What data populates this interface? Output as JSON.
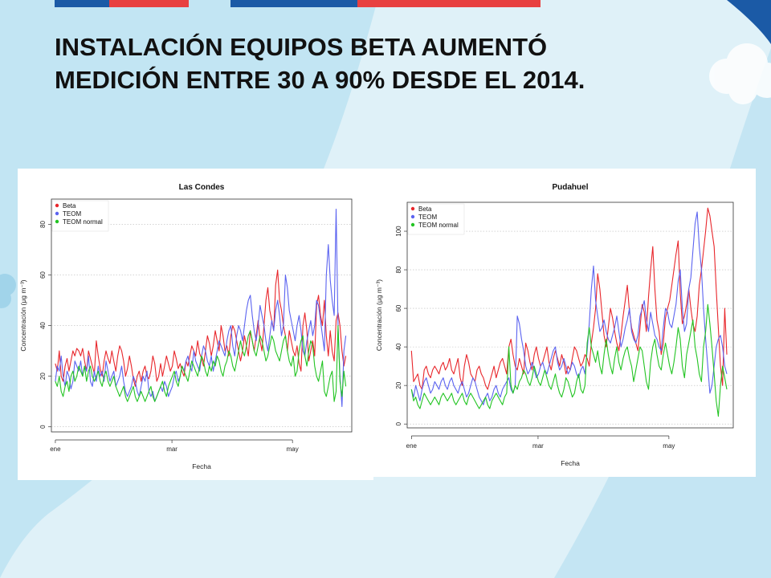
{
  "slide": {
    "title_line1": "INSTALACIÓN EQUIPOS BETA AUMENTÓ",
    "title_line2": "MEDICIÓN ENTRE 30 A 90% DESDE EL 2014.",
    "colors": {
      "background": "#dff1f8",
      "wave": "#bfe3f2",
      "bar_blue": "#1b5aa6",
      "bar_red": "#e84040"
    }
  },
  "chart_data": [
    {
      "type": "line",
      "title": "Las Condes",
      "xlabel": "Fecha",
      "ylabel": "Concentración (μg m⁻³)",
      "x_tick_labels": [
        "ene",
        "mar",
        "may"
      ],
      "x_ticks_day": [
        0,
        59,
        120
      ],
      "x_range_day": [
        -2,
        150
      ],
      "ylim": [
        -2,
        90
      ],
      "yticks": [
        0,
        20,
        40,
        60,
        80
      ],
      "grid": true,
      "legend_position": "top-left",
      "series": [
        {
          "name": "Beta",
          "color": "#e8262b",
          "values": [
            25,
            22,
            30,
            20,
            18,
            24,
            27,
            22,
            26,
            30,
            28,
            31,
            30,
            28,
            31,
            26,
            22,
            30,
            27,
            24,
            21,
            34,
            28,
            23,
            20,
            26,
            30,
            27,
            25,
            30,
            26,
            22,
            28,
            32,
            30,
            26,
            20,
            23,
            28,
            24,
            19,
            16,
            20,
            22,
            18,
            22,
            24,
            20,
            19,
            22,
            28,
            25,
            18,
            20,
            25,
            20,
            24,
            28,
            25,
            22,
            24,
            30,
            27,
            23,
            25,
            22,
            20,
            26,
            24,
            28,
            32,
            30,
            28,
            34,
            29,
            27,
            24,
            30,
            36,
            33,
            28,
            32,
            38,
            34,
            30,
            40,
            36,
            30,
            32,
            28,
            36,
            40,
            38,
            34,
            30,
            26,
            30,
            36,
            32,
            28,
            38,
            34,
            30,
            36,
            42,
            34,
            30,
            40,
            50,
            55,
            46,
            42,
            38,
            56,
            62,
            50,
            46,
            40,
            36,
            30,
            38,
            34,
            30,
            28,
            32,
            25,
            22,
            40,
            45,
            38,
            26,
            30,
            34,
            28,
            48,
            52,
            44,
            40,
            50,
            36,
            28,
            38,
            30,
            26,
            42,
            45,
            40,
            30,
            24,
            28
          ]
        },
        {
          "name": "TEOM",
          "color": "#5b63f0",
          "values": [
            18,
            24,
            22,
            28,
            20,
            16,
            22,
            20,
            15,
            18,
            26,
            24,
            22,
            26,
            20,
            24,
            22,
            28,
            18,
            16,
            22,
            18,
            24,
            20,
            22,
            18,
            26,
            22,
            18,
            20,
            22,
            16,
            18,
            20,
            24,
            18,
            14,
            12,
            14,
            16,
            20,
            18,
            14,
            12,
            16,
            20,
            18,
            22,
            14,
            12,
            14,
            10,
            12,
            14,
            16,
            14,
            18,
            16,
            12,
            14,
            16,
            20,
            22,
            18,
            20,
            24,
            22,
            26,
            28,
            24,
            22,
            30,
            26,
            24,
            22,
            28,
            32,
            30,
            26,
            24,
            28,
            22,
            26,
            30,
            34,
            32,
            30,
            28,
            34,
            38,
            40,
            32,
            28,
            36,
            40,
            38,
            34,
            40,
            46,
            50,
            52,
            44,
            38,
            34,
            40,
            48,
            44,
            40,
            34,
            30,
            36,
            42,
            38,
            46,
            50,
            44,
            36,
            40,
            60,
            55,
            46,
            42,
            38,
            34,
            40,
            44,
            38,
            30,
            28,
            34,
            38,
            42,
            36,
            40,
            50,
            48,
            42,
            36,
            30,
            60,
            72,
            58,
            50,
            44,
            86,
            40,
            20,
            8,
            30,
            36
          ]
        },
        {
          "name": "TEOM normal",
          "color": "#22c422",
          "values": [
            18,
            16,
            20,
            14,
            12,
            16,
            18,
            14,
            20,
            22,
            18,
            20,
            24,
            22,
            20,
            24,
            18,
            22,
            24,
            20,
            18,
            20,
            22,
            18,
            16,
            20,
            22,
            18,
            16,
            18,
            20,
            16,
            14,
            12,
            14,
            16,
            12,
            10,
            12,
            14,
            16,
            12,
            10,
            12,
            14,
            12,
            10,
            12,
            14,
            16,
            12,
            10,
            12,
            14,
            16,
            18,
            14,
            12,
            16,
            18,
            20,
            22,
            18,
            16,
            20,
            24,
            22,
            20,
            18,
            22,
            26,
            24,
            22,
            20,
            24,
            28,
            26,
            22,
            20,
            24,
            22,
            26,
            24,
            28,
            26,
            22,
            20,
            24,
            26,
            30,
            28,
            24,
            22,
            26,
            30,
            34,
            30,
            28,
            32,
            36,
            38,
            34,
            30,
            28,
            32,
            36,
            34,
            30,
            26,
            28,
            32,
            36,
            34,
            30,
            28,
            26,
            30,
            34,
            36,
            30,
            26,
            24,
            28,
            20,
            22,
            30,
            34,
            36,
            28,
            24,
            30,
            34,
            32,
            24,
            20,
            18,
            22,
            26,
            14,
            12,
            16,
            20,
            22,
            10,
            14,
            40,
            18,
            12,
            22,
            16
          ]
        }
      ]
    },
    {
      "type": "line",
      "title": "Pudahuel",
      "xlabel": "Fecha",
      "ylabel": "Concentración (μg m⁻³)",
      "x_tick_labels": [
        "ene",
        "mar",
        "may"
      ],
      "x_ticks_day": [
        0,
        59,
        120
      ],
      "x_range_day": [
        -2,
        150
      ],
      "ylim": [
        -2,
        115
      ],
      "yticks": [
        0,
        20,
        40,
        60,
        80,
        100
      ],
      "grid": true,
      "legend_position": "top-left",
      "series": [
        {
          "name": "Beta",
          "color": "#e8262b",
          "values": [
            38,
            22,
            24,
            26,
            20,
            18,
            28,
            30,
            26,
            24,
            28,
            30,
            28,
            26,
            30,
            32,
            28,
            30,
            34,
            28,
            26,
            30,
            34,
            24,
            20,
            30,
            36,
            32,
            26,
            24,
            22,
            28,
            30,
            26,
            24,
            20,
            18,
            22,
            26,
            30,
            24,
            28,
            32,
            34,
            30,
            26,
            40,
            44,
            36,
            30,
            28,
            34,
            30,
            26,
            42,
            38,
            32,
            28,
            36,
            40,
            34,
            30,
            32,
            36,
            40,
            32,
            28,
            34,
            38,
            34,
            30,
            36,
            32,
            26,
            30,
            28,
            34,
            40,
            38,
            34,
            30,
            32,
            36,
            34,
            30,
            42,
            50,
            60,
            78,
            70,
            58,
            46,
            40,
            50,
            60,
            55,
            48,
            42,
            38,
            46,
            56,
            64,
            72,
            58,
            50,
            46,
            42,
            38,
            50,
            62,
            58,
            48,
            66,
            80,
            92,
            70,
            54,
            48,
            36,
            42,
            55,
            60,
            64,
            72,
            80,
            88,
            95,
            68,
            52,
            56,
            62,
            70,
            60,
            52,
            48,
            56,
            72,
            80,
            90,
            100,
            112,
            108,
            100,
            92,
            70,
            50,
            30,
            20,
            60,
            36
          ]
        },
        {
          "name": "TEOM",
          "color": "#5b63f0",
          "values": [
            18,
            14,
            20,
            16,
            12,
            18,
            22,
            24,
            20,
            16,
            18,
            22,
            20,
            18,
            22,
            24,
            20,
            18,
            22,
            24,
            20,
            18,
            16,
            20,
            22,
            18,
            14,
            16,
            20,
            24,
            22,
            18,
            14,
            12,
            10,
            14,
            16,
            12,
            14,
            18,
            20,
            16,
            14,
            18,
            20,
            22,
            24,
            18,
            16,
            20,
            56,
            52,
            44,
            38,
            30,
            26,
            28,
            32,
            28,
            24,
            26,
            30,
            32,
            28,
            26,
            30,
            34,
            38,
            40,
            32,
            28,
            30,
            34,
            30,
            26,
            28,
            32,
            30,
            26,
            24,
            28,
            30,
            26,
            38,
            52,
            70,
            82,
            64,
            56,
            48,
            50,
            54,
            48,
            44,
            42,
            46,
            50,
            56,
            48,
            40,
            44,
            50,
            54,
            60,
            48,
            44,
            42,
            46,
            56,
            60,
            64,
            54,
            48,
            58,
            52,
            46,
            44,
            40,
            38,
            50,
            60,
            58,
            52,
            50,
            56,
            62,
            74,
            80,
            60,
            48,
            52,
            70,
            76,
            90,
            104,
            110,
            92,
            80,
            60,
            44,
            30,
            16,
            20,
            30,
            40,
            44,
            46,
            40,
            30,
            26
          ]
        },
        {
          "name": "TEOM normal",
          "color": "#22c422",
          "values": [
            18,
            12,
            14,
            10,
            8,
            12,
            16,
            14,
            12,
            10,
            12,
            14,
            12,
            10,
            14,
            16,
            14,
            12,
            14,
            16,
            12,
            10,
            12,
            14,
            16,
            12,
            10,
            14,
            16,
            14,
            12,
            10,
            8,
            10,
            12,
            14,
            10,
            8,
            12,
            14,
            16,
            14,
            12,
            10,
            14,
            16,
            40,
            20,
            16,
            20,
            18,
            22,
            24,
            28,
            26,
            22,
            20,
            24,
            30,
            26,
            22,
            20,
            24,
            28,
            24,
            20,
            18,
            22,
            26,
            20,
            16,
            14,
            18,
            24,
            22,
            18,
            14,
            16,
            22,
            26,
            18,
            16,
            20,
            42,
            50,
            40,
            36,
            32,
            38,
            30,
            26,
            36,
            44,
            36,
            30,
            26,
            34,
            40,
            32,
            28,
            34,
            38,
            40,
            34,
            30,
            22,
            28,
            34,
            40,
            38,
            30,
            22,
            18,
            32,
            40,
            44,
            36,
            30,
            28,
            36,
            42,
            36,
            30,
            26,
            32,
            40,
            50,
            44,
            30,
            24,
            36,
            42,
            48,
            54,
            40,
            34,
            26,
            22,
            40,
            48,
            62,
            52,
            40,
            26,
            12,
            4,
            20,
            30,
            24,
            18
          ]
        }
      ]
    }
  ]
}
